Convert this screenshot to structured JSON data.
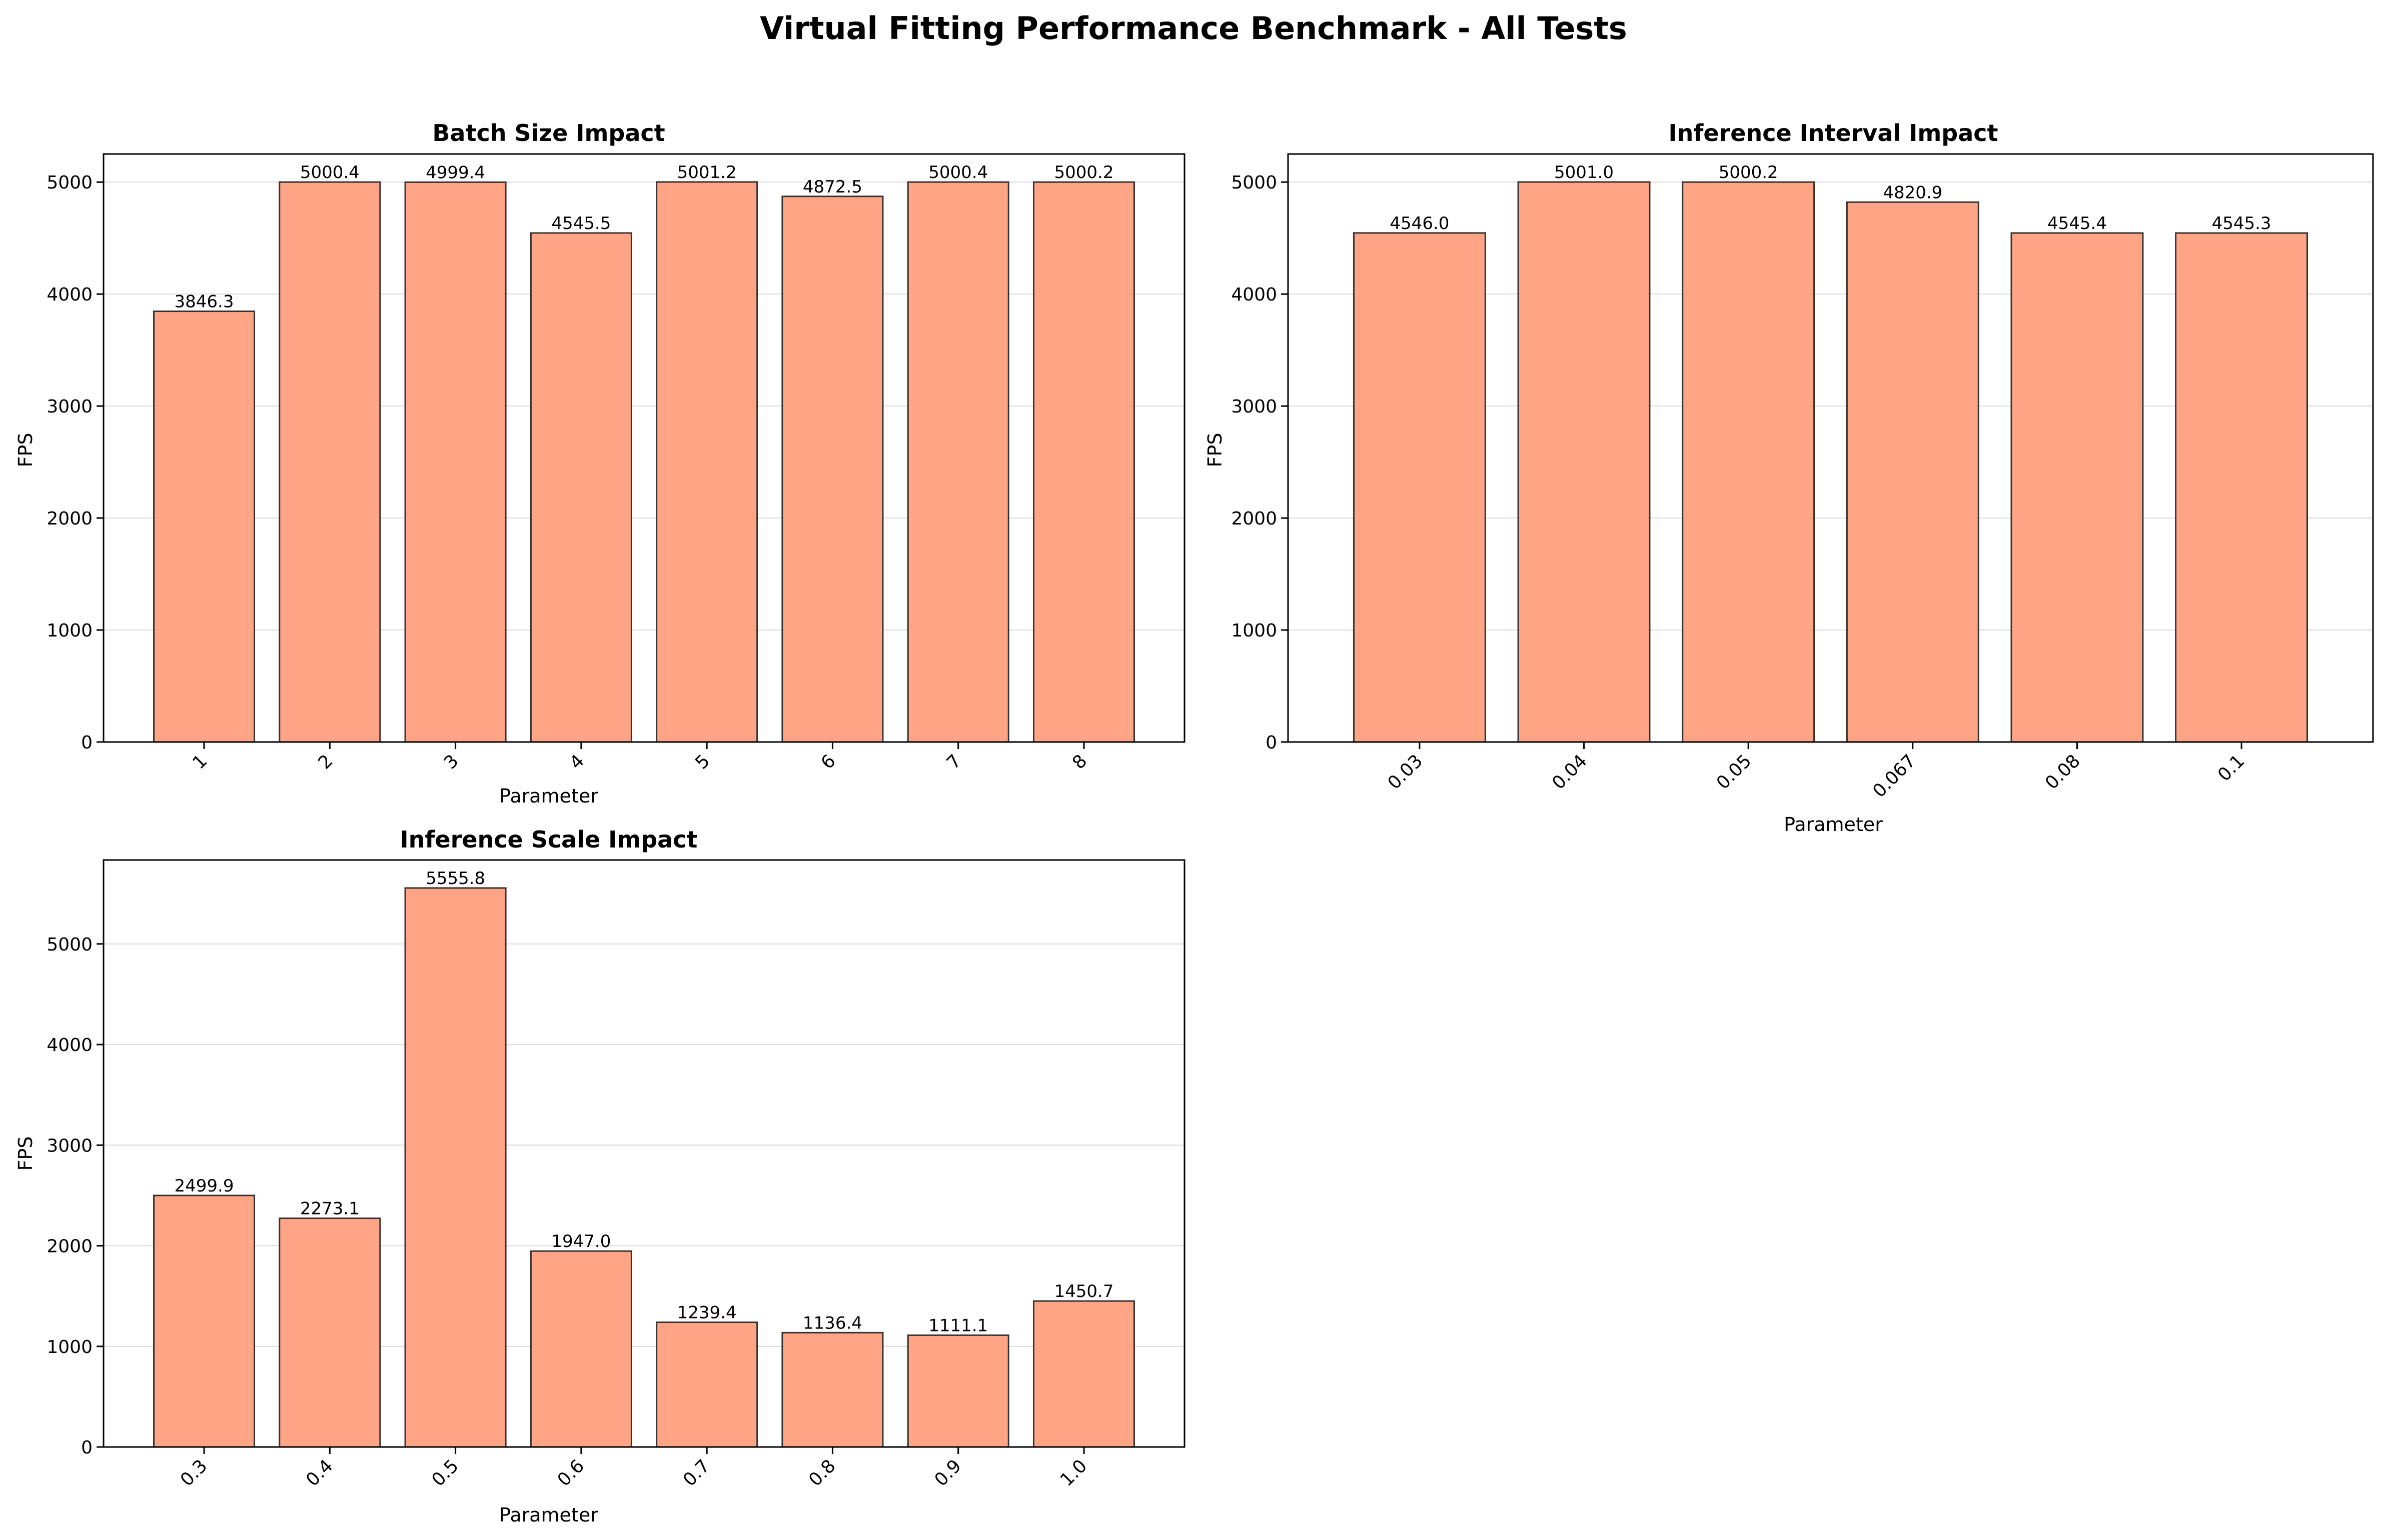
{
  "figure": {
    "title": "Virtual Fitting Performance Benchmark - All Tests",
    "bar_color": "#FFA585",
    "bar_edge_color": "#333333"
  },
  "chart_data": [
    {
      "type": "bar",
      "title": "Batch Size Impact",
      "xlabel": "Parameter",
      "ylabel": "FPS",
      "categories": [
        "1",
        "2",
        "3",
        "4",
        "5",
        "6",
        "7",
        "8"
      ],
      "values": [
        3846.3,
        5000.4,
        4999.4,
        4545.5,
        5001.2,
        4872.5,
        5000.4,
        5000.2
      ],
      "value_labels": [
        "3846.3",
        "5000.4",
        "4999.4",
        "4545.5",
        "5001.2",
        "4872.5",
        "5000.4",
        "5000.2"
      ],
      "ylim": [
        0,
        5251
      ],
      "yticks": [
        0,
        1000,
        2000,
        3000,
        4000,
        5000
      ],
      "grid": "y",
      "xtick_rotation": 45
    },
    {
      "type": "bar",
      "title": "Inference Interval Impact",
      "xlabel": "Parameter",
      "ylabel": "FPS",
      "categories": [
        "0.03",
        "0.04",
        "0.05",
        "0.067",
        "0.08",
        "0.1"
      ],
      "values": [
        4546.0,
        5001.0,
        5000.2,
        4820.9,
        4545.4,
        4545.3
      ],
      "value_labels": [
        "4546.0",
        "5001.0",
        "5000.2",
        "4820.9",
        "4545.4",
        "4545.3"
      ],
      "ylim": [
        0,
        5251
      ],
      "yticks": [
        0,
        1000,
        2000,
        3000,
        4000,
        5000
      ],
      "grid": "y",
      "xtick_rotation": 45
    },
    {
      "type": "bar",
      "title": "Inference Scale Impact",
      "xlabel": "Parameter",
      "ylabel": "FPS",
      "categories": [
        "0.3",
        "0.4",
        "0.5",
        "0.6",
        "0.7",
        "0.8",
        "0.9",
        "1.0"
      ],
      "values": [
        2499.9,
        2273.1,
        5555.8,
        1947.0,
        1239.4,
        1136.4,
        1111.1,
        1450.7
      ],
      "value_labels": [
        "2499.9",
        "2273.1",
        "5555.8",
        "1947.0",
        "1239.4",
        "1136.4",
        "1111.1",
        "1450.7"
      ],
      "ylim": [
        0,
        5834
      ],
      "yticks": [
        0,
        1000,
        2000,
        3000,
        4000,
        5000
      ],
      "grid": "y",
      "xtick_rotation": 45
    }
  ]
}
